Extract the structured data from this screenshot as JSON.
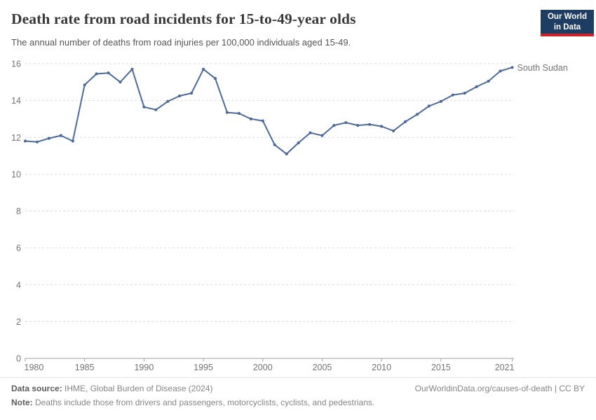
{
  "header": {
    "title": "Death rate from road incidents for 15-to-49-year olds",
    "subtitle": "The annual number of deaths from road injuries per 100,000 individuals aged 15-49.",
    "logo": {
      "line1": "Our World",
      "line2": "in Data",
      "bg_color": "#1d3d63",
      "accent_color": "#cf2128"
    }
  },
  "chart_data": {
    "type": "line",
    "title": "Death rate from road incidents for 15-to-49-year olds",
    "xlabel": "",
    "ylabel": "",
    "xlim": [
      1980,
      2021
    ],
    "ylim": [
      0,
      16
    ],
    "x_ticks": [
      1980,
      1985,
      1990,
      1995,
      2000,
      2005,
      2010,
      2015,
      2021
    ],
    "y_ticks": [
      0,
      2,
      4,
      6,
      8,
      10,
      12,
      14,
      16
    ],
    "grid": "horizontal-dashed",
    "legend_position": "line-end",
    "line_color": "#4C6A9C",
    "grid_color": "#dadada",
    "axis_color": "#a3a3a3",
    "series": [
      {
        "name": "South Sudan",
        "x": [
          1980,
          1981,
          1982,
          1983,
          1984,
          1985,
          1986,
          1987,
          1988,
          1989,
          1990,
          1991,
          1992,
          1993,
          1994,
          1995,
          1996,
          1997,
          1998,
          1999,
          2000,
          2001,
          2002,
          2003,
          2004,
          2005,
          2006,
          2007,
          2008,
          2009,
          2010,
          2011,
          2012,
          2013,
          2014,
          2015,
          2016,
          2017,
          2018,
          2019,
          2020,
          2021
        ],
        "values": [
          11.8,
          11.75,
          11.95,
          12.1,
          11.8,
          14.85,
          15.45,
          15.5,
          15.0,
          15.7,
          13.65,
          13.5,
          13.95,
          14.25,
          14.4,
          15.7,
          15.2,
          13.35,
          13.3,
          13.0,
          12.9,
          11.6,
          11.1,
          11.7,
          12.25,
          12.1,
          12.65,
          12.8,
          12.65,
          12.7,
          12.6,
          12.35,
          12.85,
          13.25,
          13.7,
          13.95,
          14.3,
          14.4,
          14.75,
          15.05,
          15.6,
          15.8
        ]
      }
    ],
    "end_label": "South Sudan"
  },
  "footer": {
    "source_label": "Data source:",
    "source_rest": " IHME, Global Burden of Disease (2024)",
    "credit": "OurWorldinData.org/causes-of-death | CC BY",
    "note_label": "Note:",
    "note_rest": " Deaths include those from drivers and passengers, motorcyclists, cyclists, and pedestrians."
  }
}
